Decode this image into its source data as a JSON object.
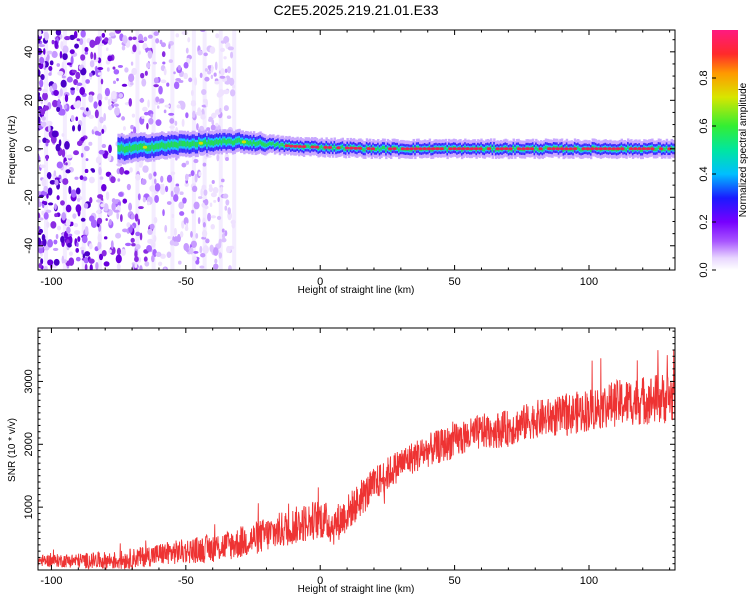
{
  "title": "C2E5.2025.219.21.01.E33",
  "colors": {
    "snr_line": "#ee3333",
    "spec_scatter": "#8a2be2",
    "spec_band": "#22dd55",
    "spec_core": "#ee2255"
  },
  "chart_data": [
    {
      "type": "heatmap",
      "name": "spectrogram",
      "xlabel": "Height of straight line (km)",
      "ylabel": "Frequency (Hz)",
      "xlim": [
        -105,
        132
      ],
      "ylim": [
        -50,
        49
      ],
      "xticks": [
        -100,
        -50,
        0,
        50,
        100
      ],
      "yticks": [
        -40,
        -20,
        0,
        20,
        40
      ],
      "grid": false,
      "description_of_content": [
        {
          "x_from": -105,
          "x_to": -32,
          "content": "broad scattered low-amplitude noise across all frequencies"
        },
        {
          "x_from": -75,
          "x_to": 132,
          "content": "narrow band near 0 Hz; amplitude rising toward 0.9 for x > -20"
        }
      ],
      "band_center_hz": [
        {
          "x": -72,
          "y": 0
        },
        {
          "x": -50,
          "y": 2
        },
        {
          "x": -30,
          "y": 3
        },
        {
          "x": -10,
          "y": 1
        },
        {
          "x": 20,
          "y": 0
        },
        {
          "x": 60,
          "y": 0
        },
        {
          "x": 100,
          "y": 0
        },
        {
          "x": 130,
          "y": 0
        }
      ],
      "colorbar": {
        "label": "Normalized spectral amplitude",
        "range": [
          0,
          1
        ],
        "ticks": [
          "0.0",
          "0.2",
          "0.4",
          "0.6",
          "0.8"
        ]
      }
    },
    {
      "type": "line",
      "name": "snr",
      "xlabel": "Height of straight line (km)",
      "ylabel": "SNR (10 * v/v)",
      "xlim": [
        -105,
        132
      ],
      "ylim": [
        0,
        3850
      ],
      "xticks": [
        -100,
        -50,
        0,
        50,
        100
      ],
      "yticks": [
        1000,
        2000,
        3000
      ],
      "grid": false,
      "series": [
        {
          "trend": [
            {
              "x": -105,
              "y": 150
            },
            {
              "x": -75,
              "y": 150
            },
            {
              "x": -60,
              "y": 250
            },
            {
              "x": -40,
              "y": 350
            },
            {
              "x": -30,
              "y": 430
            },
            {
              "x": -20,
              "y": 560
            },
            {
              "x": -10,
              "y": 700
            },
            {
              "x": 0,
              "y": 820
            },
            {
              "x": 5,
              "y": 700
            },
            {
              "x": 10,
              "y": 900
            },
            {
              "x": 20,
              "y": 1350
            },
            {
              "x": 30,
              "y": 1700
            },
            {
              "x": 40,
              "y": 1900
            },
            {
              "x": 50,
              "y": 2050
            },
            {
              "x": 60,
              "y": 2200
            },
            {
              "x": 70,
              "y": 2250
            },
            {
              "x": 80,
              "y": 2400
            },
            {
              "x": 90,
              "y": 2450
            },
            {
              "x": 100,
              "y": 2550
            },
            {
              "x": 110,
              "y": 2650
            },
            {
              "x": 120,
              "y": 2700
            },
            {
              "x": 132,
              "y": 2750
            }
          ],
          "noise_amplitude": [
            {
              "x": -105,
              "y": 90
            },
            {
              "x": -50,
              "y": 200
            },
            {
              "x": -20,
              "y": 280
            },
            {
              "x": 0,
              "y": 320
            },
            {
              "x": 30,
              "y": 260
            },
            {
              "x": 80,
              "y": 300
            },
            {
              "x": 132,
              "y": 420
            }
          ]
        }
      ]
    }
  ]
}
